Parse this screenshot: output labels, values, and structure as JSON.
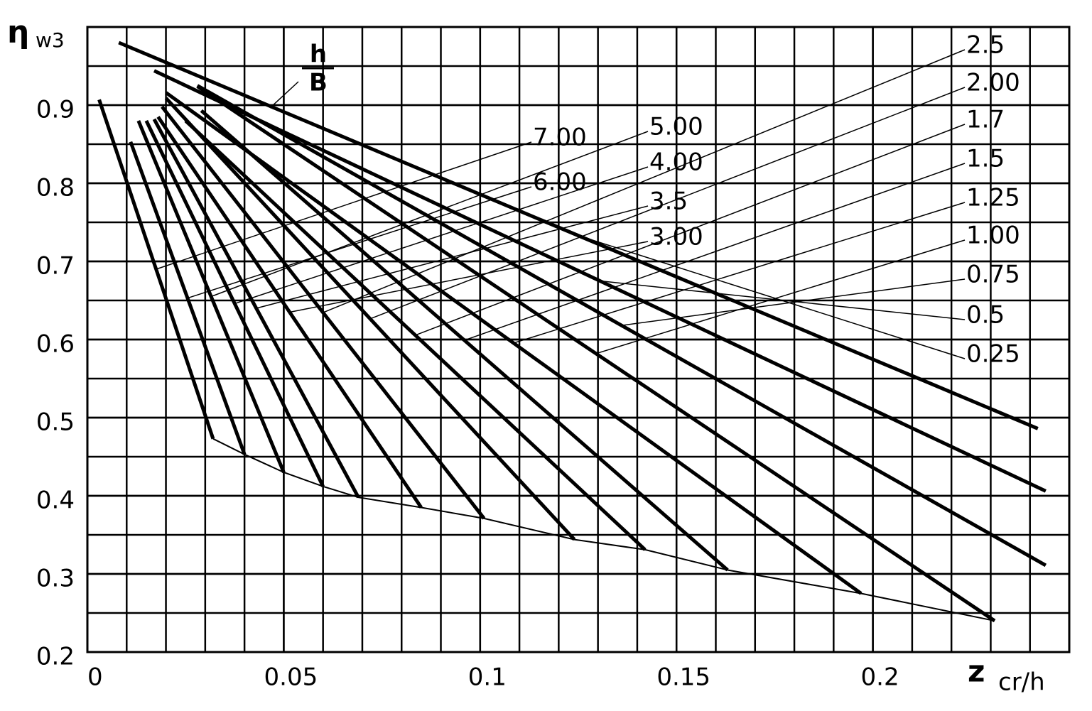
{
  "chart_data": {
    "type": "line",
    "y_label": "η",
    "y_label_sub": "w3",
    "x_label": "z",
    "x_label_sub": "cr/h",
    "legend_title": {
      "numerator": "h",
      "denominator": "B"
    },
    "xlim": [
      0,
      0.25
    ],
    "xticks": [
      0,
      0.05,
      0.1,
      0.15,
      0.2
    ],
    "ylim": [
      0.2,
      1.0
    ],
    "yticks": [
      0.2,
      0.3,
      0.4,
      0.5,
      0.6,
      0.7,
      0.8,
      0.9
    ],
    "grid": true,
    "color": "#000000",
    "series": [
      {
        "name": "7.00",
        "x": [
          0.003,
          0.032
        ],
        "values": [
          0.907,
          0.473
        ]
      },
      {
        "name": "6.00",
        "x": [
          0.011,
          0.04
        ],
        "values": [
          0.853,
          0.453
        ]
      },
      {
        "name": "5.00",
        "x": [
          0.013,
          0.05
        ],
        "values": [
          0.88,
          0.43
        ]
      },
      {
        "name": "4.00",
        "x": [
          0.015,
          0.06
        ],
        "values": [
          0.88,
          0.412
        ]
      },
      {
        "name": "3.5",
        "x": [
          0.017,
          0.069
        ],
        "values": [
          0.882,
          0.398
        ]
      },
      {
        "name": "3.00",
        "x": [
          0.018,
          0.085
        ],
        "values": [
          0.885,
          0.385
        ]
      },
      {
        "name": "2.5",
        "x": [
          0.019,
          0.101
        ],
        "values": [
          0.898,
          0.371
        ]
      },
      {
        "name": "2.00",
        "x": [
          0.02,
          0.124
        ],
        "values": [
          0.909,
          0.344
        ]
      },
      {
        "name": "1.7",
        "x": [
          0.025,
          0.142
        ],
        "values": [
          0.88,
          0.331
        ]
      },
      {
        "name": "1.5",
        "x": [
          0.029,
          0.163
        ],
        "values": [
          0.893,
          0.305
        ]
      },
      {
        "name": "1.25",
        "x": [
          0.02,
          0.197
        ],
        "values": [
          0.916,
          0.275
        ]
      },
      {
        "name": "1.00",
        "x": [
          0.028,
          0.231
        ],
        "values": [
          0.924,
          0.24
        ]
      },
      {
        "name": "0.75",
        "x": [
          0.028,
          0.244
        ],
        "values": [
          0.925,
          0.311
        ]
      },
      {
        "name": "0.5",
        "x": [
          0.017,
          0.244
        ],
        "values": [
          0.944,
          0.406
        ]
      },
      {
        "name": "0.25",
        "x": [
          0.008,
          0.242
        ],
        "values": [
          0.98,
          0.486
        ]
      }
    ]
  }
}
